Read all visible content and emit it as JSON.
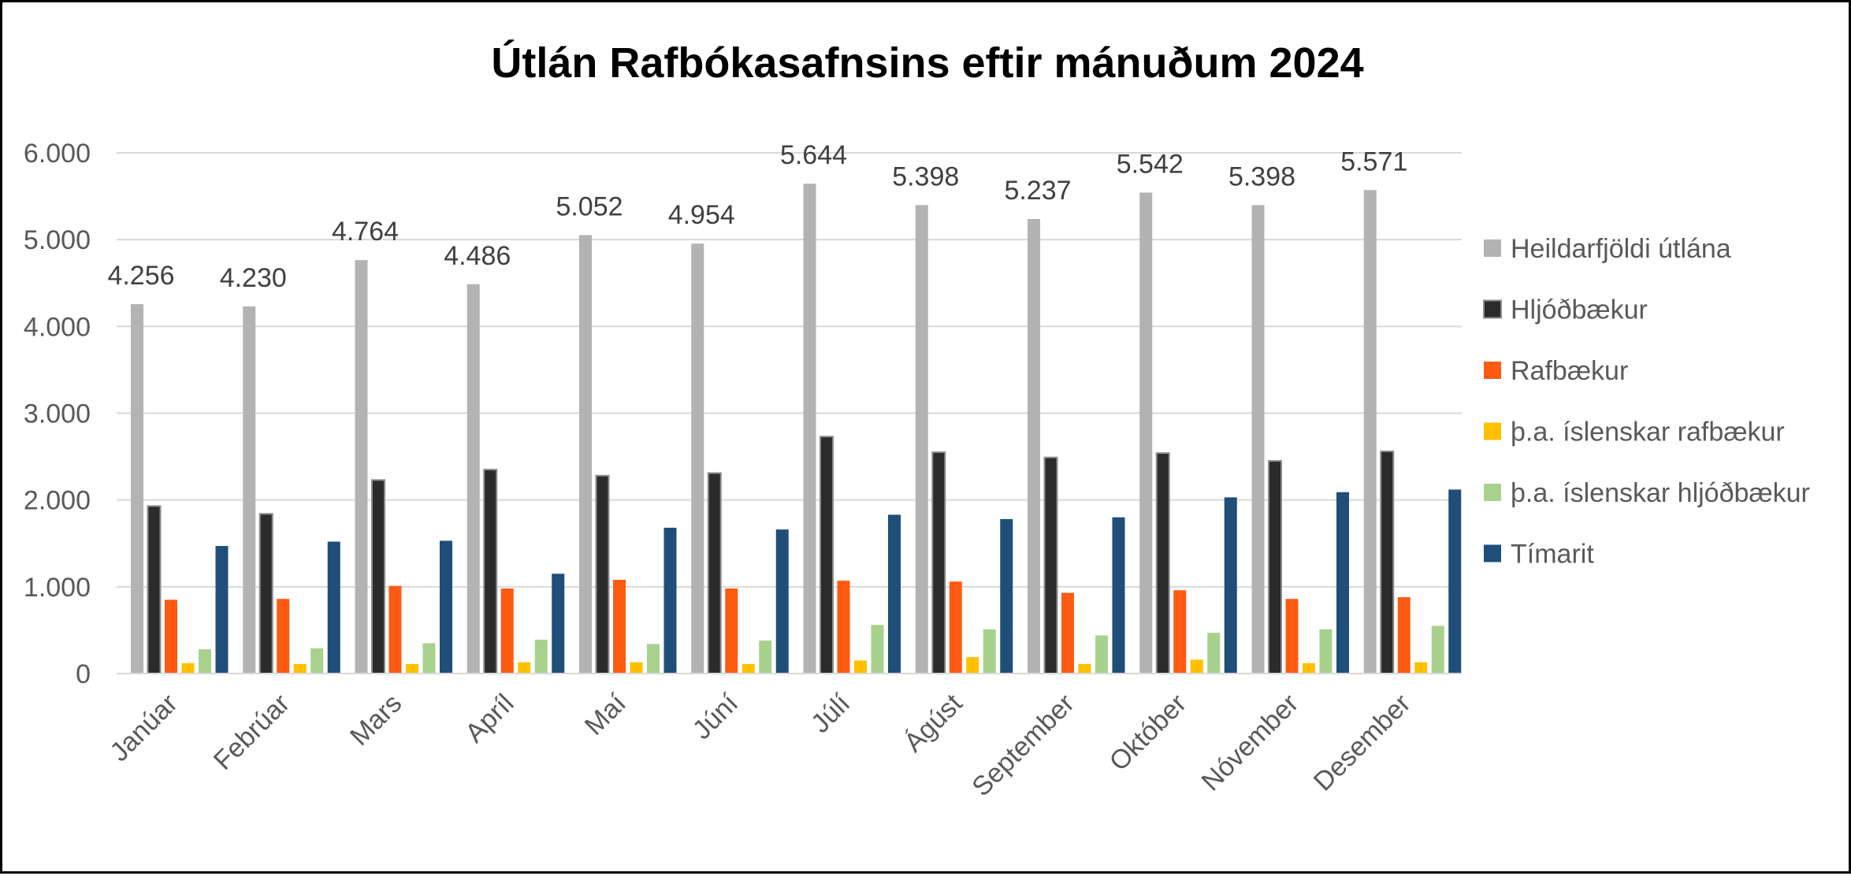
{
  "chart_data": {
    "type": "bar",
    "title": "Útlán Rafbókasafnsins eftir mánuðum 2024",
    "xlabel": "",
    "ylabel": "",
    "ylim": [
      0,
      6000
    ],
    "yticks": [
      0,
      1000,
      2000,
      3000,
      4000,
      5000,
      6000
    ],
    "ytick_labels": [
      "0",
      "1.000",
      "2.000",
      "3.000",
      "4.000",
      "5.000",
      "6.000"
    ],
    "grid": true,
    "legend_position": "right",
    "categories": [
      "Janúar",
      "Febrúar",
      "Mars",
      "Apríl",
      "Maí",
      "Júní",
      "Júlí",
      "Ágúst",
      "September",
      "Október",
      "Nóvember",
      "Desember"
    ],
    "series": [
      {
        "name": "Heildarfjöldi útlána",
        "color": "#b3b3b3",
        "values": [
          4256,
          4230,
          4764,
          4486,
          5052,
          4954,
          5644,
          5398,
          5237,
          5542,
          5398,
          5571
        ],
        "data_labels": [
          "4.256",
          "4.230",
          "4.764",
          "4.486",
          "5.052",
          "4.954",
          "5.644",
          "5.398",
          "5.237",
          "5.542",
          "5.398",
          "5.571"
        ]
      },
      {
        "name": "Hljóðbækur",
        "color": "#2b2b2b",
        "values": [
          1930,
          1840,
          2230,
          2350,
          2280,
          2310,
          2730,
          2550,
          2490,
          2540,
          2450,
          2560
        ]
      },
      {
        "name": "Rafbækur",
        "color": "#ff5a12",
        "values": [
          850,
          860,
          1010,
          980,
          1080,
          980,
          1070,
          1060,
          930,
          960,
          860,
          880
        ]
      },
      {
        "name": "þ.a. íslenskar rafbækur",
        "color": "#ffc000",
        "values": [
          120,
          110,
          110,
          130,
          130,
          110,
          150,
          190,
          110,
          160,
          120,
          130
        ]
      },
      {
        "name": "þ.a. íslenskar hljóðbækur",
        "color": "#a9d18e",
        "values": [
          280,
          290,
          350,
          390,
          340,
          380,
          560,
          510,
          440,
          470,
          510,
          550
        ]
      },
      {
        "name": "Tímarit",
        "color": "#1f4e79",
        "values": [
          1470,
          1520,
          1530,
          1150,
          1680,
          1660,
          1830,
          1780,
          1800,
          2030,
          2090,
          2120
        ]
      }
    ]
  }
}
